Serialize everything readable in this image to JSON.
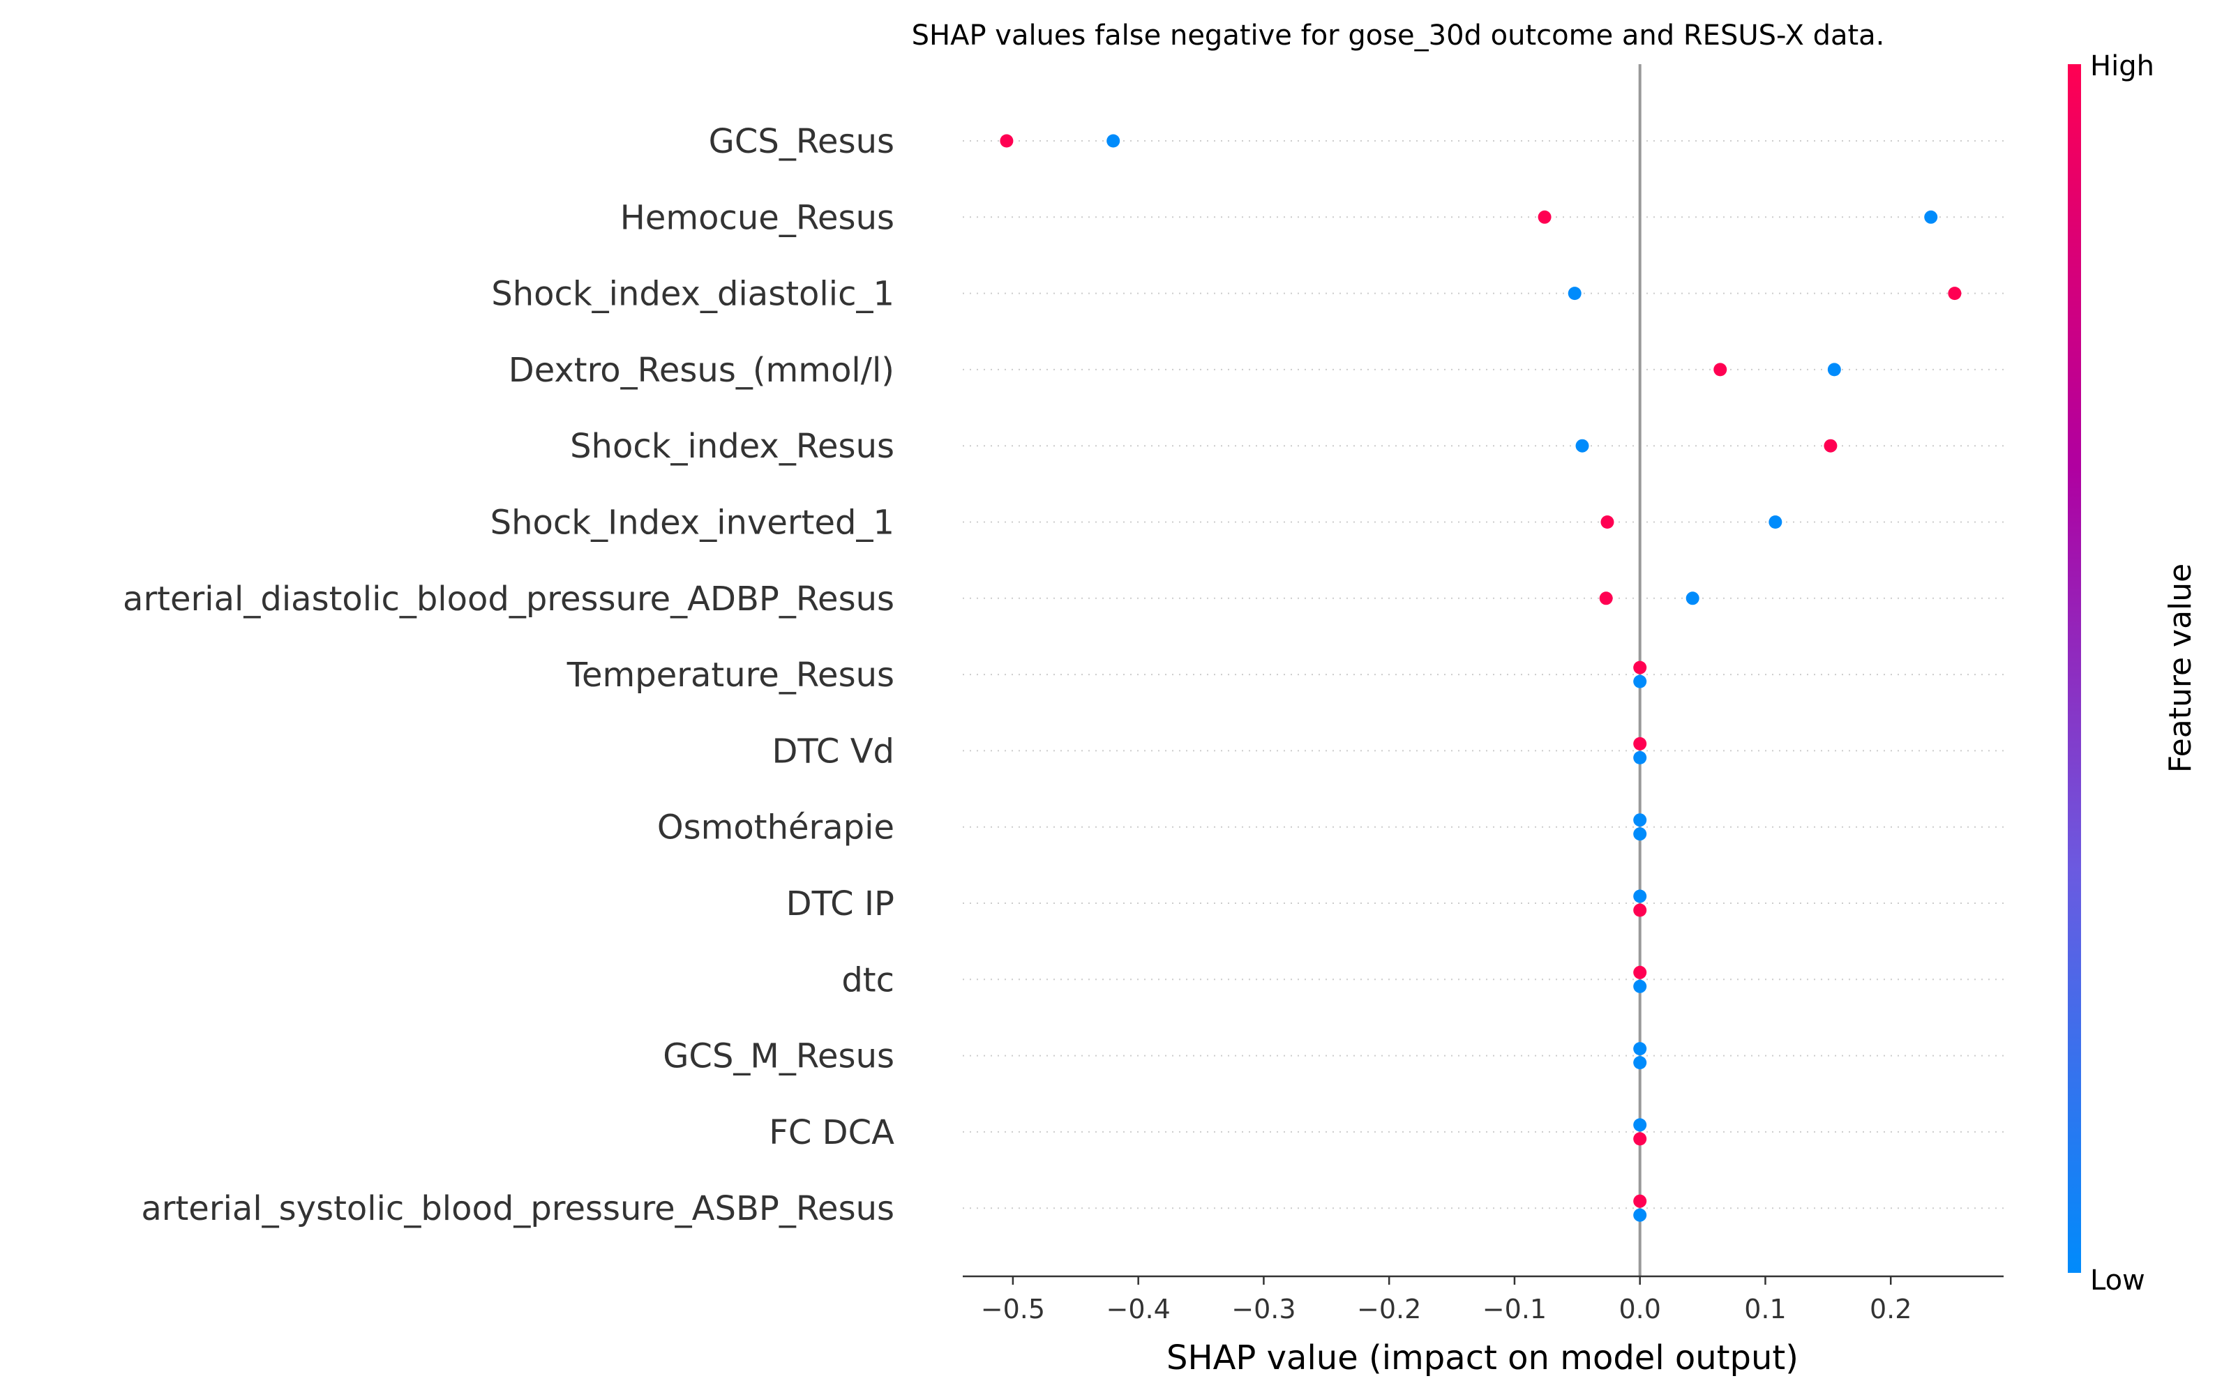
{
  "chart_data": {
    "type": "scatter",
    "title": "SHAP values false negative for gose_30d outcome and RESUS-X data.",
    "xlabel": "SHAP value (impact on model output)",
    "xlim": [
      -0.54,
      0.29
    ],
    "xticks": [
      -0.5,
      -0.4,
      -0.3,
      -0.2,
      -0.1,
      0.0,
      0.1,
      0.2
    ],
    "xtick_labels": [
      "−0.5",
      "−0.4",
      "−0.3",
      "−0.2",
      "−0.1",
      "0.0",
      "0.1",
      "0.2"
    ],
    "features": [
      "GCS_Resus",
      "Hemocue_Resus",
      "Shock_index_diastolic_1",
      "Dextro_Resus_(mmol/l)",
      "Shock_index_Resus",
      "Shock_Index_inverted_1",
      "arterial_diastolic_blood_pressure_ADBP_Resus",
      "Temperature_Resus",
      "DTC Vd",
      "Osmothérapie",
      "DTC IP",
      "dtc",
      "GCS_M_Resus",
      "FC  DCA",
      "arterial_systolic_blood_pressure_ASBP_Resus"
    ],
    "points": [
      [
        {
          "x": -0.505,
          "level": "high"
        },
        {
          "x": -0.42,
          "level": "low"
        }
      ],
      [
        {
          "x": -0.076,
          "level": "high"
        },
        {
          "x": 0.232,
          "level": "low"
        }
      ],
      [
        {
          "x": -0.052,
          "level": "low"
        },
        {
          "x": 0.251,
          "level": "high"
        }
      ],
      [
        {
          "x": 0.064,
          "level": "high"
        },
        {
          "x": 0.155,
          "level": "low"
        }
      ],
      [
        {
          "x": -0.046,
          "level": "low"
        },
        {
          "x": 0.152,
          "level": "high"
        }
      ],
      [
        {
          "x": -0.026,
          "level": "high"
        },
        {
          "x": 0.108,
          "level": "low"
        }
      ],
      [
        {
          "x": -0.027,
          "level": "high"
        },
        {
          "x": 0.042,
          "level": "low"
        }
      ],
      [
        {
          "x": 0.0,
          "level": "high"
        },
        {
          "x": 0.0,
          "level": "low"
        }
      ],
      [
        {
          "x": 0.0,
          "level": "high"
        },
        {
          "x": 0.0,
          "level": "low"
        }
      ],
      [
        {
          "x": 0.0,
          "level": "low"
        },
        {
          "x": 0.0,
          "level": "low"
        }
      ],
      [
        {
          "x": 0.0,
          "level": "low"
        },
        {
          "x": 0.0,
          "level": "high"
        }
      ],
      [
        {
          "x": 0.0,
          "level": "high"
        },
        {
          "x": 0.0,
          "level": "low"
        }
      ],
      [
        {
          "x": 0.0,
          "level": "low"
        },
        {
          "x": 0.0,
          "level": "low"
        }
      ],
      [
        {
          "x": 0.0,
          "level": "low"
        },
        {
          "x": 0.0,
          "level": "high"
        }
      ],
      [
        {
          "x": 0.0,
          "level": "high"
        },
        {
          "x": 0.0,
          "level": "low"
        }
      ]
    ],
    "colors": {
      "high": "#ff0052",
      "low": "#008bfb",
      "zero_line": "#999999",
      "grid": "#cccccc"
    },
    "grid": "dotted horizontal row lines",
    "colorbar": {
      "label": "Feature value",
      "high_label": "High",
      "low_label": "Low",
      "gradient": [
        "#008bfb",
        "#6b5ae0",
        "#b000a0",
        "#ff0052"
      ]
    }
  }
}
